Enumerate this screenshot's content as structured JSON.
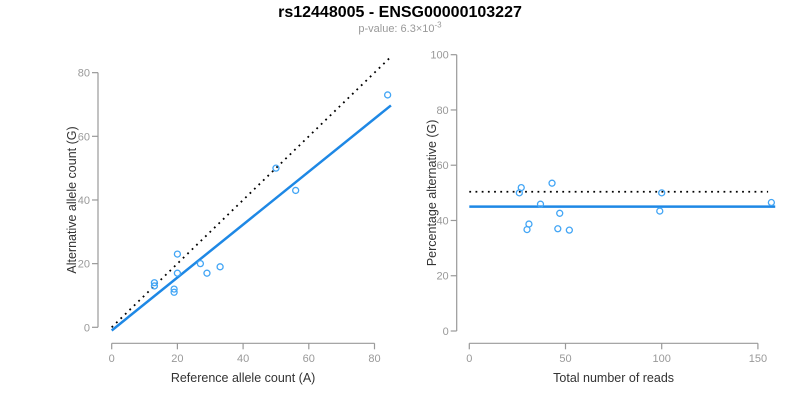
{
  "header": {
    "title": "rs12448005 - ENSG00000103227",
    "subtitle_prefix": "p-value: 6.3×10",
    "subtitle_exponent": "-3"
  },
  "colors": {
    "title": "#000000",
    "subtitle": "#999999",
    "axis_line": "#999999",
    "tick_label": "#999999",
    "axis_title": "#333333",
    "identity_line": "#000000",
    "regression_line": "#1E88E5",
    "point_stroke": "#42A5F5"
  },
  "chart_data": [
    {
      "name": "allele-count-scatter",
      "type": "scatter",
      "xlabel": "Reference allele count (A)",
      "ylabel": "Alternative allele count (G)",
      "xlim": [
        0,
        85
      ],
      "ylim": [
        0,
        85
      ],
      "xticks": [
        0,
        20,
        40,
        60,
        80
      ],
      "yticks": [
        0,
        20,
        40,
        60,
        80
      ],
      "grid": false,
      "points": [
        [
          13,
          14
        ],
        [
          13,
          13
        ],
        [
          20,
          23
        ],
        [
          20,
          17
        ],
        [
          19,
          12
        ],
        [
          19,
          11
        ],
        [
          27,
          20
        ],
        [
          29,
          17
        ],
        [
          33,
          19
        ],
        [
          50,
          50
        ],
        [
          56,
          43
        ],
        [
          84,
          73
        ]
      ],
      "lines": [
        {
          "name": "identity-line",
          "style": "dotted",
          "color_key": "identity_line",
          "from": [
            0,
            0
          ],
          "to": [
            85,
            85
          ]
        },
        {
          "name": "regression-line",
          "style": "solid",
          "color_key": "regression_line",
          "from": [
            0,
            -1
          ],
          "to": [
            85,
            69.7
          ]
        }
      ]
    },
    {
      "name": "percentage-alternative-scatter",
      "type": "scatter",
      "xlabel": "Total number of reads",
      "ylabel": "Percentage alternative (G)",
      "xlim": [
        0,
        160
      ],
      "ylim": [
        0,
        100
      ],
      "xticks": [
        0,
        50,
        100,
        150
      ],
      "yticks": [
        0,
        20,
        40,
        60,
        80,
        100
      ],
      "grid": false,
      "points": [
        [
          27,
          51.9
        ],
        [
          26,
          50
        ],
        [
          43,
          53.5
        ],
        [
          37,
          45.9
        ],
        [
          31,
          38.7
        ],
        [
          30,
          36.7
        ],
        [
          47,
          42.6
        ],
        [
          46,
          37
        ],
        [
          52,
          36.5
        ],
        [
          100,
          50
        ],
        [
          99,
          43.4
        ],
        [
          157,
          46.5
        ]
      ],
      "lines": [
        {
          "name": "expected-percentage-line",
          "style": "dotted",
          "color_key": "identity_line",
          "from": [
            0,
            50.4
          ],
          "to": [
            155.3,
            50.4
          ]
        },
        {
          "name": "mean-percentage-line",
          "style": "solid",
          "color_key": "regression_line",
          "from": [
            0,
            45
          ],
          "to": [
            159,
            45
          ]
        }
      ]
    }
  ]
}
